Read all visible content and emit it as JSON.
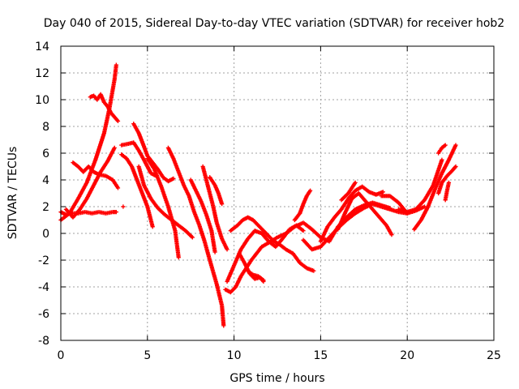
{
  "chart_data": {
    "type": "scatter",
    "title": "Day 040 of 2015, Sidereal Day-to-day VTEC variation (SDTVAR) for receiver hob2",
    "xlabel": "GPS time / hours",
    "ylabel": "SDTVAR / TECUs",
    "xlim": [
      0,
      25
    ],
    "ylim": [
      -8,
      14
    ],
    "xticks": [
      "0",
      "5",
      "10",
      "15",
      "20",
      "25"
    ],
    "yticks": [
      "-8",
      "-6",
      "-4",
      "-2",
      "0",
      "2",
      "4",
      "6",
      "8",
      "10",
      "12",
      "14"
    ],
    "grid": true,
    "marker": "plus",
    "color": "#ff0000",
    "series": [
      {
        "x": [
          0.0,
          0.3,
          0.6,
          1.0,
          1.4,
          1.8,
          2.2,
          2.6,
          3.0,
          3.2
        ],
        "y": [
          1.6,
          1.4,
          1.5,
          1.5,
          1.6,
          1.5,
          1.6,
          1.5,
          1.6,
          1.6
        ]
      },
      {
        "x": [
          0.0,
          0.5,
          1.0,
          1.5,
          2.0,
          2.5,
          2.8,
          3.1,
          3.2
        ],
        "y": [
          1.0,
          1.5,
          2.6,
          3.8,
          5.5,
          7.5,
          9.3,
          11.5,
          12.6
        ]
      },
      {
        "x": [
          0.3,
          0.7,
          1.1,
          1.5,
          1.9,
          2.3,
          2.7,
          3.1
        ],
        "y": [
          1.8,
          1.2,
          1.8,
          2.6,
          3.6,
          4.6,
          5.4,
          6.4
        ]
      },
      {
        "x": [
          0.7,
          1.0,
          1.3,
          1.6,
          1.9,
          2.2,
          2.6,
          3.0,
          3.3
        ],
        "y": [
          5.3,
          5.0,
          4.6,
          5.0,
          4.6,
          4.4,
          4.3,
          4.0,
          3.4
        ]
      },
      {
        "x": [
          1.7,
          1.9,
          2.1,
          2.3,
          2.5,
          2.7,
          2.9,
          3.1,
          3.3
        ],
        "y": [
          10.2,
          10.3,
          10.0,
          10.4,
          9.8,
          9.5,
          9.0,
          8.7,
          8.4
        ]
      },
      {
        "x": [
          3.5,
          3.9,
          4.2,
          4.5,
          4.8,
          5.0,
          5.2,
          5.5
        ],
        "y": [
          6.6,
          6.7,
          6.8,
          6.2,
          5.5,
          5.0,
          4.5,
          4.3
        ]
      },
      {
        "x": [
          4.2,
          4.5,
          4.8,
          5.0,
          5.3,
          5.6,
          5.9,
          6.2,
          6.5
        ],
        "y": [
          8.2,
          7.5,
          6.5,
          5.8,
          5.3,
          4.8,
          4.2,
          3.9,
          4.1
        ]
      },
      {
        "x": [
          3.5,
          3.8,
          4.1,
          4.4,
          4.7,
          5.0,
          5.3
        ],
        "y": [
          5.9,
          5.6,
          5.0,
          4.0,
          3.0,
          2.0,
          0.5
        ]
      },
      {
        "x": [
          4.5,
          4.8,
          5.2,
          5.6,
          6.0,
          6.4,
          6.8,
          7.2,
          7.6
        ],
        "y": [
          5.0,
          3.6,
          2.6,
          1.9,
          1.4,
          1.0,
          0.6,
          0.2,
          -0.3
        ]
      },
      {
        "x": [
          5.0,
          5.4,
          5.8,
          6.2,
          6.6,
          6.8
        ],
        "y": [
          5.6,
          4.8,
          3.5,
          2.0,
          0.2,
          -1.8
        ]
      },
      {
        "x": [
          6.2,
          6.5,
          6.8,
          7.1,
          7.4,
          7.7,
          8.0,
          8.3,
          8.6,
          9.0,
          9.3,
          9.4
        ],
        "y": [
          6.4,
          5.6,
          4.6,
          3.6,
          2.8,
          1.6,
          0.6,
          -0.6,
          -2.0,
          -3.8,
          -5.4,
          -6.9
        ]
      },
      {
        "x": [
          7.5,
          7.8,
          8.1,
          8.4,
          8.7,
          8.9
        ],
        "y": [
          4.0,
          3.2,
          2.4,
          1.4,
          0.2,
          -1.4
        ]
      },
      {
        "x": [
          8.2,
          8.5,
          8.8,
          9.0,
          9.3,
          9.6
        ],
        "y": [
          5.0,
          3.5,
          2.0,
          0.8,
          -0.4,
          -1.2
        ]
      },
      {
        "x": [
          8.6,
          8.9,
          9.1,
          9.3
        ],
        "y": [
          4.2,
          3.6,
          3.0,
          2.2
        ]
      },
      {
        "x": [
          9.5,
          9.8,
          10.1,
          10.4,
          10.7,
          11.0,
          11.3,
          11.6,
          12.0,
          12.5,
          13.0,
          13.5,
          14.0,
          14.5,
          15.0,
          15.5,
          16.0,
          16.5,
          17.0,
          17.5,
          18.0,
          18.5,
          19.0
        ],
        "y": [
          -4.2,
          -4.4,
          -4.0,
          -3.2,
          -2.6,
          -2.0,
          -1.5,
          -1.0,
          -0.7,
          -0.3,
          0.0,
          0.5,
          0.8,
          0.3,
          -0.3,
          -0.6,
          0.5,
          1.2,
          1.8,
          2.1,
          2.3,
          2.1,
          1.9
        ]
      },
      {
        "x": [
          9.6,
          10.0,
          10.4,
          10.8,
          11.2,
          11.6,
          12.0,
          12.4,
          12.8,
          13.2,
          13.6,
          14.0
        ],
        "y": [
          -3.6,
          -2.4,
          -1.2,
          -0.4,
          0.2,
          0.0,
          -0.6,
          -1.0,
          -0.4,
          0.3,
          0.6,
          0.2
        ]
      },
      {
        "x": [
          9.8,
          10.2,
          10.5,
          10.8,
          11.1,
          11.4,
          11.7,
          12.0,
          12.3,
          12.6,
          13.0,
          13.4,
          13.8,
          14.2,
          14.6
        ],
        "y": [
          0.2,
          0.6,
          1.0,
          1.2,
          1.0,
          0.6,
          0.2,
          -0.2,
          -0.6,
          -0.8,
          -1.2,
          -1.5,
          -2.2,
          -2.6,
          -2.8
        ]
      },
      {
        "x": [
          10.3,
          10.6,
          10.9,
          11.2,
          11.5,
          11.7
        ],
        "y": [
          -1.5,
          -2.2,
          -3.0,
          -3.4,
          -3.3,
          -3.6
        ]
      },
      {
        "x": [
          13.5,
          13.8,
          14.0,
          14.2,
          14.4
        ],
        "y": [
          1.0,
          1.5,
          2.2,
          2.8,
          3.2
        ]
      },
      {
        "x": [
          14.0,
          14.5,
          15.0,
          15.5,
          16.0,
          16.5,
          17.0,
          17.5,
          18.0,
          18.5,
          19.0,
          19.5,
          20.0,
          20.5,
          21.0
        ],
        "y": [
          -0.5,
          -1.2,
          -1.0,
          -0.3,
          0.4,
          1.0,
          1.5,
          1.9,
          2.2,
          2.0,
          1.8,
          1.6,
          1.5,
          1.7,
          2.0
        ]
      },
      {
        "x": [
          15.0,
          15.4,
          15.8,
          16.2,
          16.6,
          17.0,
          17.4,
          17.8,
          18.2,
          18.6
        ],
        "y": [
          -0.6,
          0.5,
          1.2,
          1.8,
          2.6,
          3.2,
          3.5,
          3.1,
          2.9,
          3.1
        ]
      },
      {
        "x": [
          16.0,
          16.4,
          16.8,
          17.2,
          17.6,
          18.0,
          18.4,
          18.8,
          19.1
        ],
        "y": [
          0.3,
          1.5,
          2.6,
          3.0,
          2.4,
          1.8,
          1.2,
          0.6,
          -0.1
        ]
      },
      {
        "x": [
          16.2,
          16.6,
          17.0
        ],
        "y": [
          2.5,
          3.0,
          3.8
        ]
      },
      {
        "x": [
          18.5,
          19.0,
          19.5,
          20.0
        ],
        "y": [
          2.8,
          2.8,
          2.3,
          1.5
        ]
      },
      {
        "x": [
          19.5,
          20.0,
          20.5,
          21.0,
          21.5,
          22.0
        ],
        "y": [
          1.8,
          1.6,
          1.8,
          2.5,
          3.6,
          5.5
        ]
      },
      {
        "x": [
          20.4,
          20.8,
          21.2,
          21.6,
          22.0,
          22.4,
          22.8
        ],
        "y": [
          0.3,
          1.0,
          2.0,
          3.3,
          4.5,
          5.5,
          6.6
        ]
      },
      {
        "x": [
          21.8,
          22.0,
          22.3,
          22.6,
          22.8
        ],
        "y": [
          3.0,
          3.8,
          4.3,
          4.7,
          5.0
        ]
      },
      {
        "x": [
          21.8,
          21.9,
          22.0,
          22.1,
          22.2
        ],
        "y": [
          6.0,
          6.2,
          6.4,
          6.5,
          6.6
        ]
      },
      {
        "x": [
          22.2,
          22.3,
          22.4
        ],
        "y": [
          2.5,
          3.2,
          3.8
        ]
      },
      {
        "x": [
          3.6
        ],
        "y": [
          2.0
        ]
      },
      {
        "x": [
          10.8,
          11.1,
          11.4,
          11.7
        ],
        "y": [
          -2.8,
          -3.1,
          -3.2,
          -3.5
        ]
      }
    ]
  }
}
